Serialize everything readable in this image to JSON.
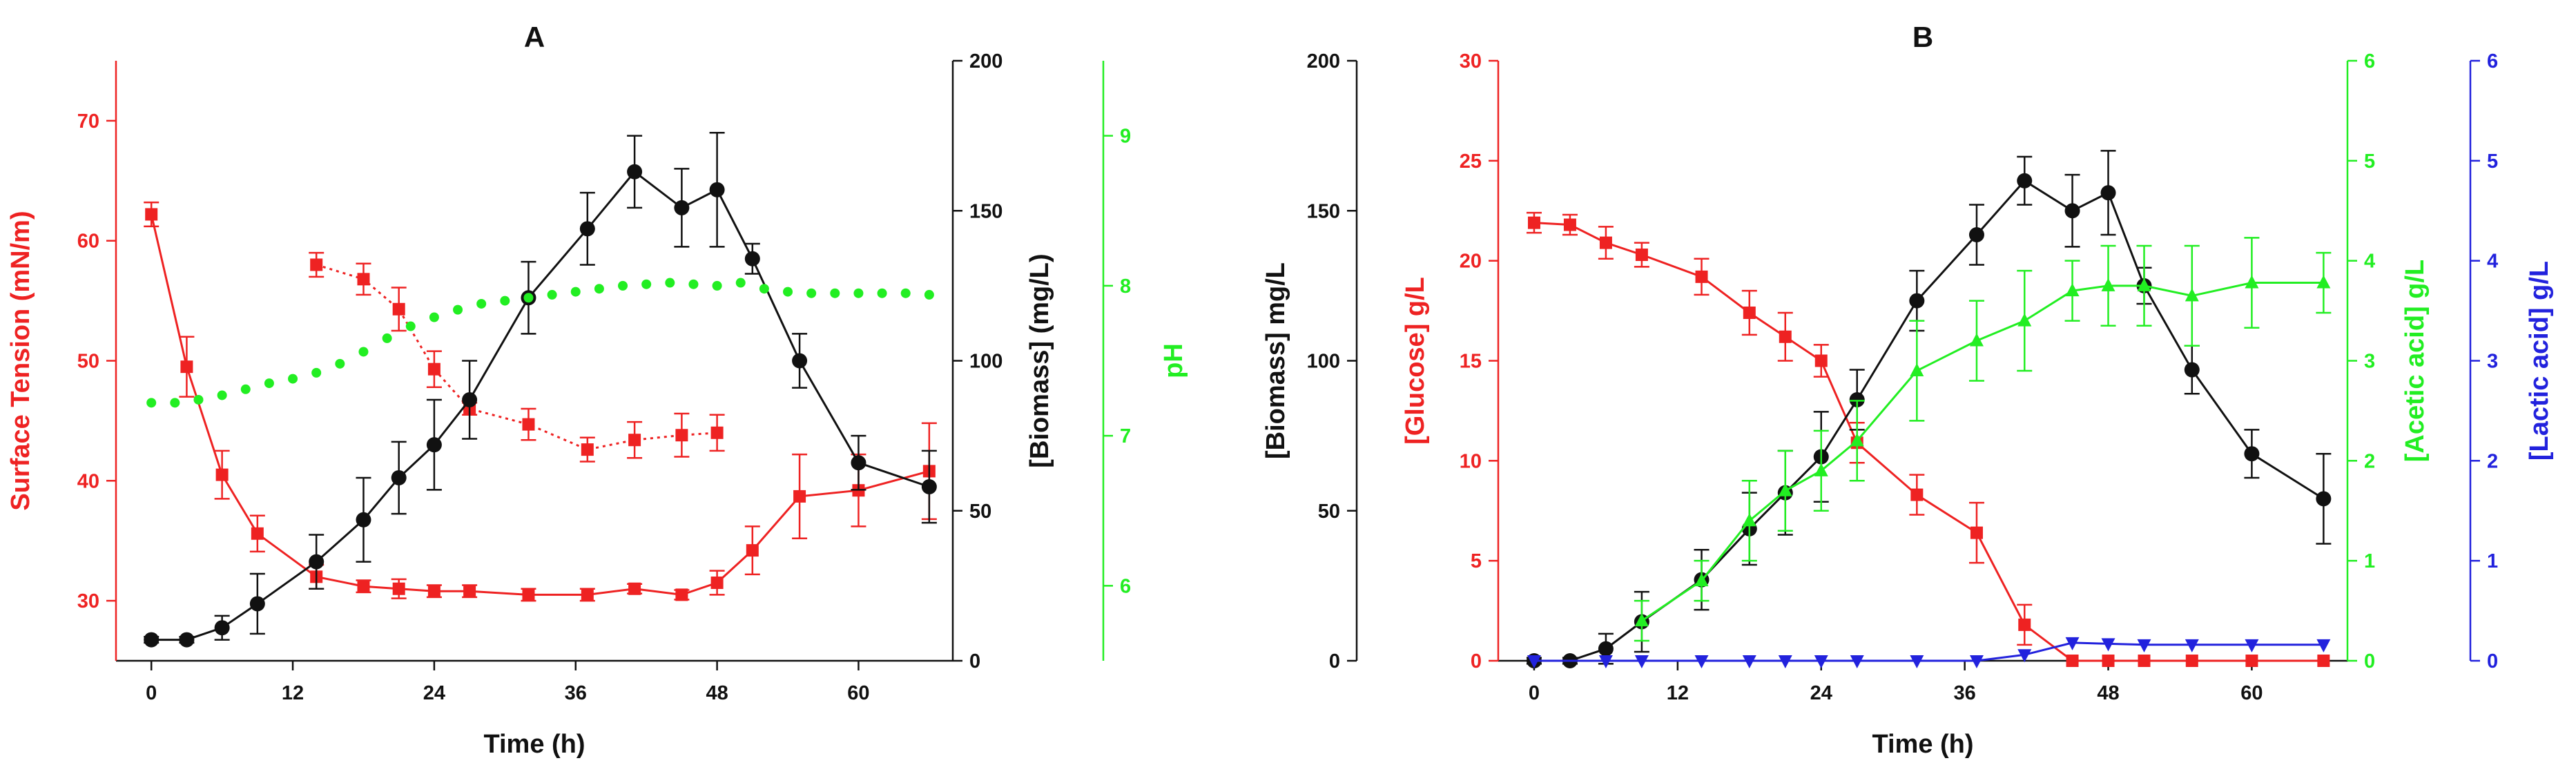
{
  "colors": {
    "red": "#ee2222",
    "black": "#111111",
    "green": "#22ee22",
    "blue": "#2222dd"
  },
  "chart_data": [
    {
      "panel": "A",
      "type": "line",
      "title": "A",
      "xlabel": "Time (h)",
      "xlim": [
        -3,
        68
      ],
      "xticks": [
        0,
        12,
        24,
        36,
        48,
        60
      ],
      "axes": {
        "left": {
          "label": "Surface Tension (mN/m)",
          "color": "#ee2222",
          "range": [
            25,
            75
          ],
          "ticks": [
            30,
            40,
            50,
            60,
            70
          ]
        },
        "right1": {
          "label": "[Biomass] (mg/L)",
          "color": "#111111",
          "range": [
            0,
            200
          ],
          "ticks": [
            0,
            50,
            100,
            150,
            200
          ]
        },
        "right2": {
          "label": "pH",
          "color": "#22ee22",
          "range": [
            5.5,
            9.5
          ],
          "ticks": [
            6,
            7,
            8,
            9
          ]
        }
      },
      "series": [
        {
          "axis": "left",
          "color": "#ee2222",
          "marker": "square",
          "line": "solid",
          "x": [
            0,
            3,
            6,
            9,
            14,
            18,
            21,
            24,
            27,
            32,
            37,
            41,
            45,
            48,
            51,
            55,
            60,
            66
          ],
          "y": [
            62.2,
            49.5,
            40.5,
            35.6,
            32,
            31.2,
            31,
            30.8,
            30.8,
            30.5,
            30.5,
            31,
            30.5,
            31.5,
            34.2,
            38.7,
            39.2,
            40.8
          ],
          "err": [
            1,
            2.5,
            2,
            1.5,
            1,
            0.5,
            0.8,
            0.5,
            0.5,
            0.5,
            0.5,
            0.4,
            0.4,
            1,
            2,
            3.5,
            3,
            4
          ]
        },
        {
          "axis": "left",
          "color": "#ee2222",
          "marker": "square",
          "line": "dotted",
          "x": [
            14,
            18,
            21,
            24,
            27,
            32,
            37,
            41,
            45,
            48
          ],
          "y": [
            58,
            56.8,
            54.3,
            49.3,
            46,
            44.7,
            42.6,
            43.4,
            43.8,
            44
          ],
          "err": [
            1,
            1.3,
            1.8,
            1.5,
            0.5,
            1.3,
            1,
            1.5,
            1.8,
            1.5
          ]
        },
        {
          "axis": "right1",
          "color": "#111111",
          "marker": "circle",
          "line": "solid",
          "x": [
            0,
            3,
            6,
            9,
            14,
            18,
            21,
            24,
            27,
            32,
            37,
            41,
            45,
            48,
            51,
            55,
            60,
            66
          ],
          "y": [
            7,
            7,
            11,
            19,
            33,
            47,
            61,
            72,
            87,
            121,
            144,
            163,
            151,
            157,
            134,
            100,
            66,
            58
          ],
          "err": [
            1,
            1,
            4,
            10,
            9,
            14,
            12,
            15,
            13,
            12,
            12,
            12,
            13,
            19,
            5,
            9,
            9,
            12
          ]
        },
        {
          "axis": "right2",
          "color": "#22ee22",
          "marker": "dot",
          "line": "none",
          "x": [
            0,
            2,
            4,
            6,
            8,
            10,
            12,
            14,
            16,
            18,
            20,
            22,
            24,
            26,
            28,
            30,
            32,
            34,
            36,
            38,
            40,
            42,
            44,
            46,
            48,
            50,
            52,
            54,
            56,
            58,
            60,
            62,
            64,
            66
          ],
          "y": [
            7.22,
            7.22,
            7.24,
            7.27,
            7.31,
            7.35,
            7.38,
            7.42,
            7.48,
            7.56,
            7.65,
            7.73,
            7.79,
            7.84,
            7.88,
            7.9,
            7.92,
            7.94,
            7.96,
            7.98,
            8.0,
            8.01,
            8.02,
            8.01,
            8.0,
            8.02,
            7.98,
            7.96,
            7.95,
            7.95,
            7.95,
            7.95,
            7.95,
            7.94
          ]
        }
      ]
    },
    {
      "panel": "B",
      "type": "line",
      "title": "B",
      "xlabel": "Time (h)",
      "xlim": [
        -3,
        68
      ],
      "xticks": [
        0,
        12,
        24,
        36,
        48,
        60
      ],
      "axes": {
        "left": {
          "label": "[Biomass] mg/L",
          "color": "#111111",
          "range": [
            0,
            200
          ],
          "ticks": [
            0,
            50,
            100,
            150,
            200
          ]
        },
        "left2": {
          "label": "[Glucose] g/L",
          "color": "#ee2222",
          "range": [
            0,
            30
          ],
          "ticks": [
            0,
            5,
            10,
            15,
            20,
            25,
            30
          ]
        },
        "right1": {
          "label": "[Acetic acid] g/L",
          "color": "#22ee22",
          "range": [
            0,
            6
          ],
          "ticks": [
            0,
            1,
            2,
            3,
            4,
            5,
            6
          ]
        },
        "right2": {
          "label": "[Lactic acid] g/L",
          "color": "#2222dd",
          "range": [
            0,
            6
          ],
          "ticks": [
            0,
            1,
            2,
            3,
            4,
            5,
            6
          ]
        }
      },
      "series": [
        {
          "axis": "left2",
          "color": "#ee2222",
          "marker": "square",
          "line": "solid",
          "x": [
            0,
            3,
            6,
            9,
            14,
            18,
            21,
            24,
            27,
            32,
            37,
            41,
            45,
            48,
            51,
            55,
            60,
            66
          ],
          "y": [
            21.9,
            21.8,
            20.9,
            20.3,
            19.2,
            17.4,
            16.2,
            15,
            10.9,
            8.3,
            6.4,
            1.8,
            0,
            0,
            0,
            0,
            0,
            0
          ],
          "err": [
            0.5,
            0.5,
            0.8,
            0.6,
            0.9,
            1.1,
            1.2,
            0.8,
            1,
            1,
            1.5,
            1,
            0,
            0,
            0,
            0,
            0,
            0
          ]
        },
        {
          "axis": "left",
          "color": "#111111",
          "marker": "circle",
          "line": "solid",
          "x": [
            0,
            3,
            6,
            9,
            14,
            18,
            21,
            24,
            27,
            32,
            37,
            41,
            45,
            48,
            51,
            55,
            60,
            66
          ],
          "y": [
            0,
            0,
            4,
            13,
            27,
            44,
            56,
            68,
            87,
            120,
            142,
            160,
            150,
            156,
            125,
            97,
            69,
            54
          ],
          "err": [
            1,
            1,
            5,
            10,
            10,
            12,
            14,
            15,
            10,
            10,
            10,
            8,
            12,
            14,
            6,
            8,
            8,
            15
          ]
        },
        {
          "axis": "right1",
          "color": "#22ee22",
          "marker": "triangle",
          "line": "solid",
          "x": [
            9,
            14,
            18,
            21,
            24,
            27,
            32,
            37,
            41,
            45,
            48,
            51,
            55,
            60,
            66
          ],
          "y": [
            0.4,
            0.8,
            1.4,
            1.7,
            1.9,
            2.2,
            2.9,
            3.2,
            3.4,
            3.7,
            3.75,
            3.75,
            3.65,
            3.78,
            3.78
          ],
          "err": [
            0.2,
            0.2,
            0.4,
            0.4,
            0.4,
            0.4,
            0.5,
            0.4,
            0.5,
            0.3,
            0.4,
            0.4,
            0.5,
            0.45,
            0.3
          ]
        },
        {
          "axis": "right2",
          "color": "#2222dd",
          "marker": "triangle-down",
          "line": "solid",
          "x": [
            0,
            6,
            9,
            14,
            18,
            21,
            24,
            27,
            32,
            37,
            41,
            45,
            48,
            51,
            55,
            60,
            66
          ],
          "y": [
            0,
            0,
            0,
            0,
            0,
            0,
            0,
            0,
            0,
            0,
            0.06,
            0.18,
            0.17,
            0.16,
            0.16,
            0.16,
            0.16
          ]
        }
      ]
    }
  ]
}
